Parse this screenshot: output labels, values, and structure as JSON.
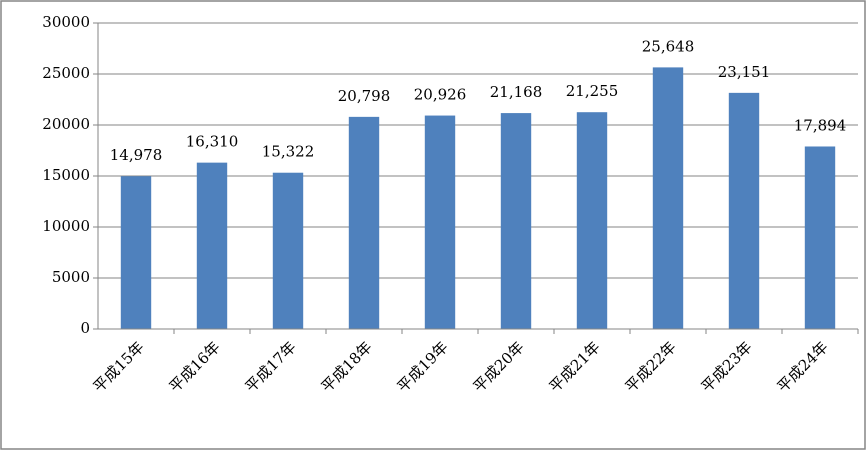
{
  "chart_data": {
    "type": "bar",
    "categories": [
      "平成15年",
      "平成16年",
      "平成17年",
      "平成18年",
      "平成19年",
      "平成20年",
      "平成21年",
      "平成22年",
      "平成23年",
      "平成24年"
    ],
    "values": [
      14978,
      16310,
      15322,
      20798,
      20926,
      21168,
      21255,
      25648,
      23151,
      17894
    ],
    "value_labels": [
      "14,978",
      "16,310",
      "15,322",
      "20,798",
      "20,926",
      "21,168",
      "21,255",
      "25,648",
      "23,151",
      "17,894"
    ],
    "color": "#4f81bd",
    "ylim": [
      0,
      30000
    ],
    "yticks": [
      0,
      5000,
      10000,
      15000,
      20000,
      25000,
      30000
    ],
    "grid": true
  }
}
